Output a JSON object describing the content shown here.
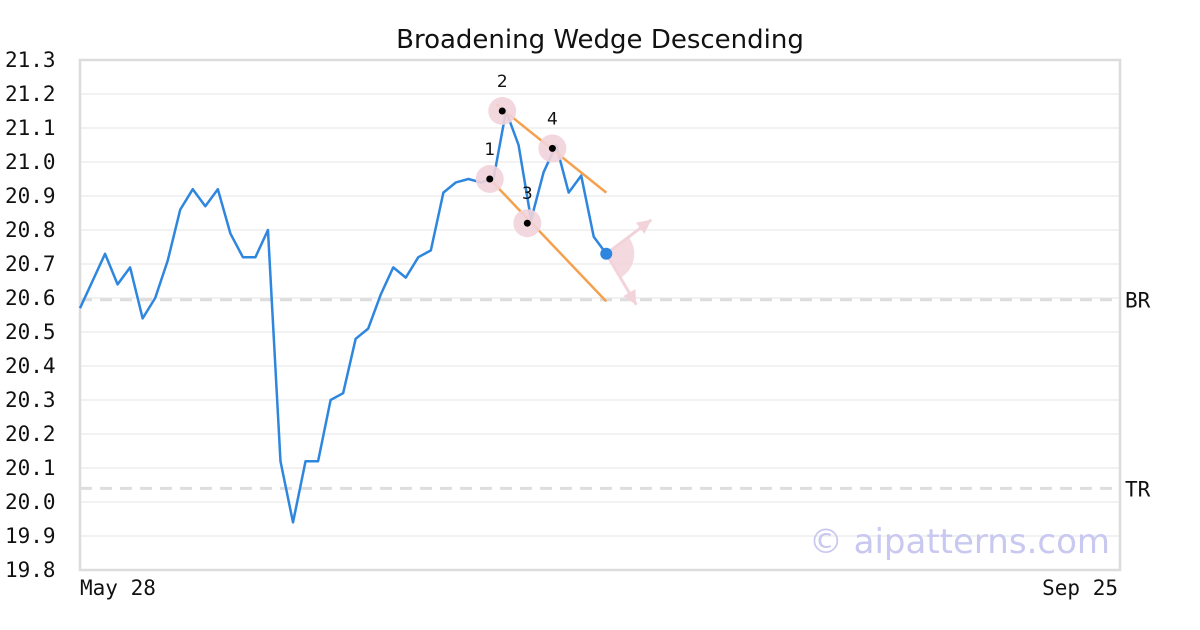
{
  "chart_data": {
    "type": "line",
    "title": "Broadening Wedge Descending",
    "watermark": "© aipatterns.com",
    "ylim": [
      19.8,
      21.3
    ],
    "y_ticks": [
      "21.3",
      "21.2",
      "21.1",
      "21.0",
      "20.9",
      "20.8",
      "20.7",
      "20.6",
      "20.5",
      "20.4",
      "20.3",
      "20.2",
      "20.1",
      "20.0",
      "19.9",
      "19.8"
    ],
    "x_ticks": [
      "May 28",
      "Sep 25"
    ],
    "x_count": 84,
    "grid": true,
    "series": [
      {
        "color": "#2e86de",
        "x": [
          0,
          1,
          2,
          3,
          4,
          5,
          6,
          7,
          8,
          9,
          10,
          11,
          12,
          13,
          14,
          15,
          16,
          17,
          18,
          19,
          20,
          21,
          22,
          23,
          24,
          25,
          26,
          27,
          28,
          29,
          30,
          31,
          32,
          33,
          34,
          35,
          36,
          37,
          38,
          39,
          40,
          41,
          42,
          43,
          44,
          45,
          46,
          47,
          48,
          49,
          50,
          51,
          52,
          53,
          54,
          55,
          56,
          57,
          58,
          59,
          60,
          61,
          62,
          63,
          64,
          65,
          66,
          67,
          68,
          69,
          70,
          71,
          72,
          73,
          74,
          75,
          76,
          77,
          78,
          79,
          80,
          81,
          82,
          83
        ],
        "values": [
          20.57,
          20.65,
          20.73,
          20.64,
          20.69,
          20.54,
          20.6,
          20.71,
          20.86,
          20.92,
          20.87,
          20.92,
          20.79,
          20.72,
          20.72,
          20.8,
          20.12,
          19.94,
          20.12,
          20.12,
          20.3,
          20.32,
          20.48,
          20.51,
          20.61,
          20.69,
          20.66,
          20.72,
          20.74,
          20.91,
          20.94,
          20.95,
          20.94,
          20.95,
          21.15,
          21.05,
          20.83,
          20.97,
          21.05,
          20.91,
          20.96,
          20.78,
          20.73,
          null,
          null,
          null,
          null,
          null,
          null,
          null,
          null,
          null,
          null,
          null,
          null,
          null,
          null,
          null,
          null,
          null,
          null,
          null,
          null,
          null,
          null,
          null,
          null,
          null,
          null,
          null,
          null,
          null,
          null,
          null,
          null,
          null,
          null,
          null,
          null,
          null,
          null,
          null,
          null,
          null
        ]
      }
    ],
    "levels": [
      {
        "label": "BR",
        "value": 20.595,
        "color": "#dddddd"
      },
      {
        "label": "TR",
        "value": 20.04,
        "color": "#dddddd"
      }
    ],
    "points": [
      {
        "label": "1",
        "x": 32.7,
        "y": 20.95
      },
      {
        "label": "2",
        "x": 33.7,
        "y": 21.15
      },
      {
        "label": "3",
        "x": 35.7,
        "y": 20.82
      },
      {
        "label": "4",
        "x": 37.7,
        "y": 21.04
      }
    ],
    "trend_lines": [
      {
        "color": "#f5a04f",
        "from": [
          33.2,
          21.17
        ],
        "to": [
          42.0,
          20.91
        ]
      },
      {
        "color": "#f5a04f",
        "from": [
          32.7,
          20.95
        ],
        "to": [
          42.0,
          20.59
        ]
      }
    ],
    "current_point": {
      "x": 42.0,
      "y": 20.73,
      "color": "#2e86de"
    },
    "projection_arrows": [
      {
        "to": [
          45.6,
          20.83
        ]
      },
      {
        "to": [
          44.4,
          20.58
        ]
      }
    ]
  }
}
